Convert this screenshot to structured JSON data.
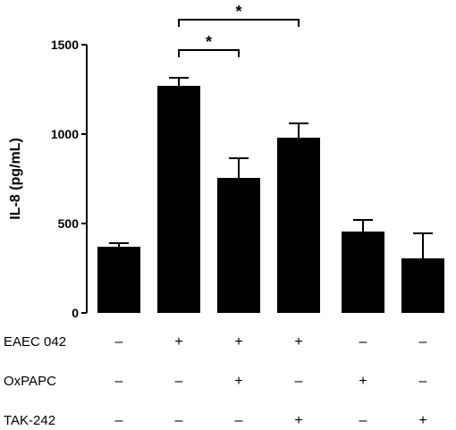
{
  "chart_data": {
    "type": "bar",
    "ylabel": "IL-8 (pg/mL)",
    "ylim": [
      0,
      1500
    ],
    "yticks": [
      "0",
      "500",
      "1000",
      "1500"
    ],
    "values": [
      370,
      1270,
      755,
      980,
      455,
      305
    ],
    "errors": [
      20,
      45,
      110,
      80,
      65,
      140
    ],
    "bar_color": "#000000",
    "conditions": [
      {
        "label": "EAEC 042",
        "signs": [
          "–",
          "+",
          "+",
          "+",
          "–",
          "–"
        ]
      },
      {
        "label": "OxPAPC",
        "signs": [
          "–",
          "–",
          "+",
          "–",
          "+",
          "–"
        ]
      },
      {
        "label": "TAK-242",
        "signs": [
          "–",
          "–",
          "–",
          "+",
          "–",
          "+"
        ]
      }
    ],
    "significance": [
      {
        "from": 1,
        "to": 2,
        "label": "*"
      },
      {
        "from": 1,
        "to": 3,
        "label": "*"
      }
    ]
  }
}
